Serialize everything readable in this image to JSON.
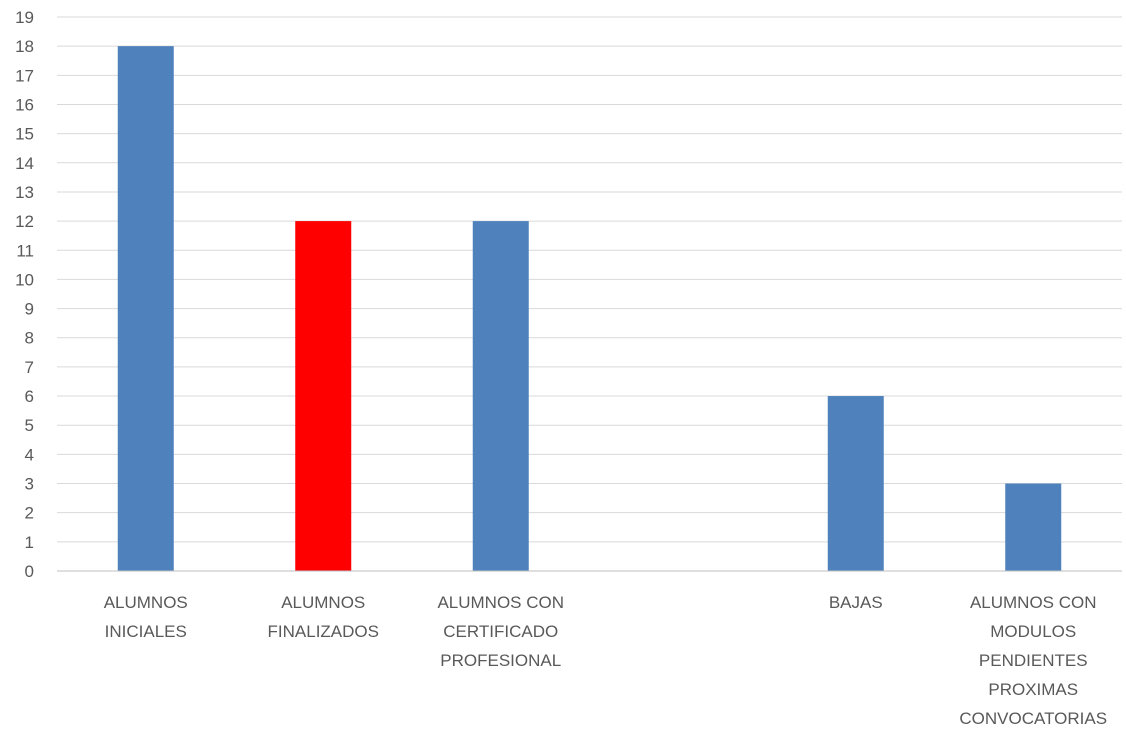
{
  "chart_data": {
    "type": "bar",
    "categories": [
      [
        "ALUMNOS",
        "INICIALES"
      ],
      [
        "ALUMNOS",
        "FINALIZADOS"
      ],
      [
        "ALUMNOS CON",
        "CERTIFICADO",
        "PROFESIONAL"
      ],
      [],
      [
        "BAJAS"
      ],
      [
        "ALUMNOS CON",
        "MODULOS",
        "PENDIENTES",
        "PROXIMAS",
        "CONVOCATORIAS"
      ]
    ],
    "values": [
      18,
      12,
      12,
      null,
      6,
      3
    ],
    "colors": [
      "#4f81bd",
      "#ff0000",
      "#4f81bd",
      "#4f81bd",
      "#4f81bd",
      "#4f81bd"
    ],
    "ylim": [
      0,
      19
    ],
    "yticks": [
      0,
      1,
      2,
      3,
      4,
      5,
      6,
      7,
      8,
      9,
      10,
      11,
      12,
      13,
      14,
      15,
      16,
      17,
      18,
      19
    ],
    "grid": true,
    "legend": "none",
    "title": "",
    "xlabel": "",
    "ylabel": ""
  }
}
